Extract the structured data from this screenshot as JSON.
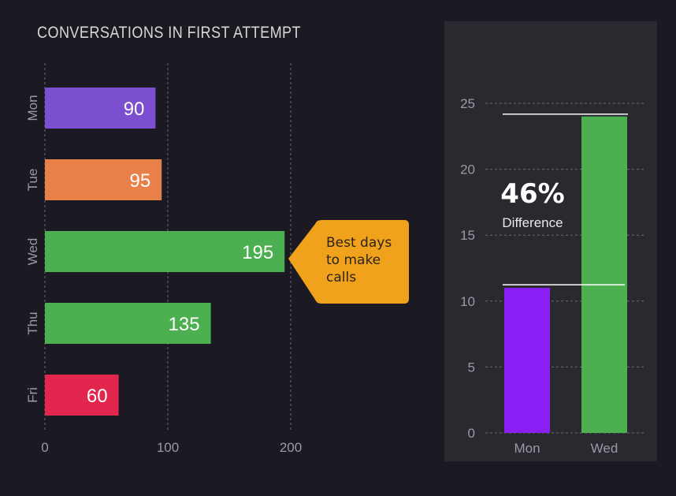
{
  "colors": {
    "background": "#1b1a22",
    "panel": "#2a2930",
    "callout": "#f0a21c",
    "grid": "#6a6a72"
  },
  "chart_data": [
    {
      "type": "bar",
      "orientation": "horizontal",
      "title": "CONVERSATIONS IN FIRST ATTEMPT",
      "categories": [
        "Mon",
        "Tue",
        "Wed",
        "Thu",
        "Fri"
      ],
      "values": [
        90,
        95,
        195,
        135,
        60
      ],
      "bar_colors": [
        "#7b4fcf",
        "#e8804a",
        "#4caf50",
        "#4caf50",
        "#e2264d"
      ],
      "x_ticks": [
        0,
        100,
        200
      ],
      "xlim": [
        0,
        250
      ],
      "grid": true,
      "annotation": "Best days to make calls",
      "annotation_lines": [
        "Best days",
        "to make",
        "calls"
      ]
    },
    {
      "type": "bar",
      "orientation": "vertical",
      "categories": [
        "Mon",
        "Wed"
      ],
      "values": [
        11,
        24
      ],
      "bar_colors": [
        "#8b1ef5",
        "#4caf50"
      ],
      "y_ticks": [
        0,
        5,
        10,
        15,
        20,
        25
      ],
      "ylim": [
        0,
        25
      ],
      "grid": true,
      "difference_value": "46%",
      "difference_label": "Difference"
    }
  ]
}
